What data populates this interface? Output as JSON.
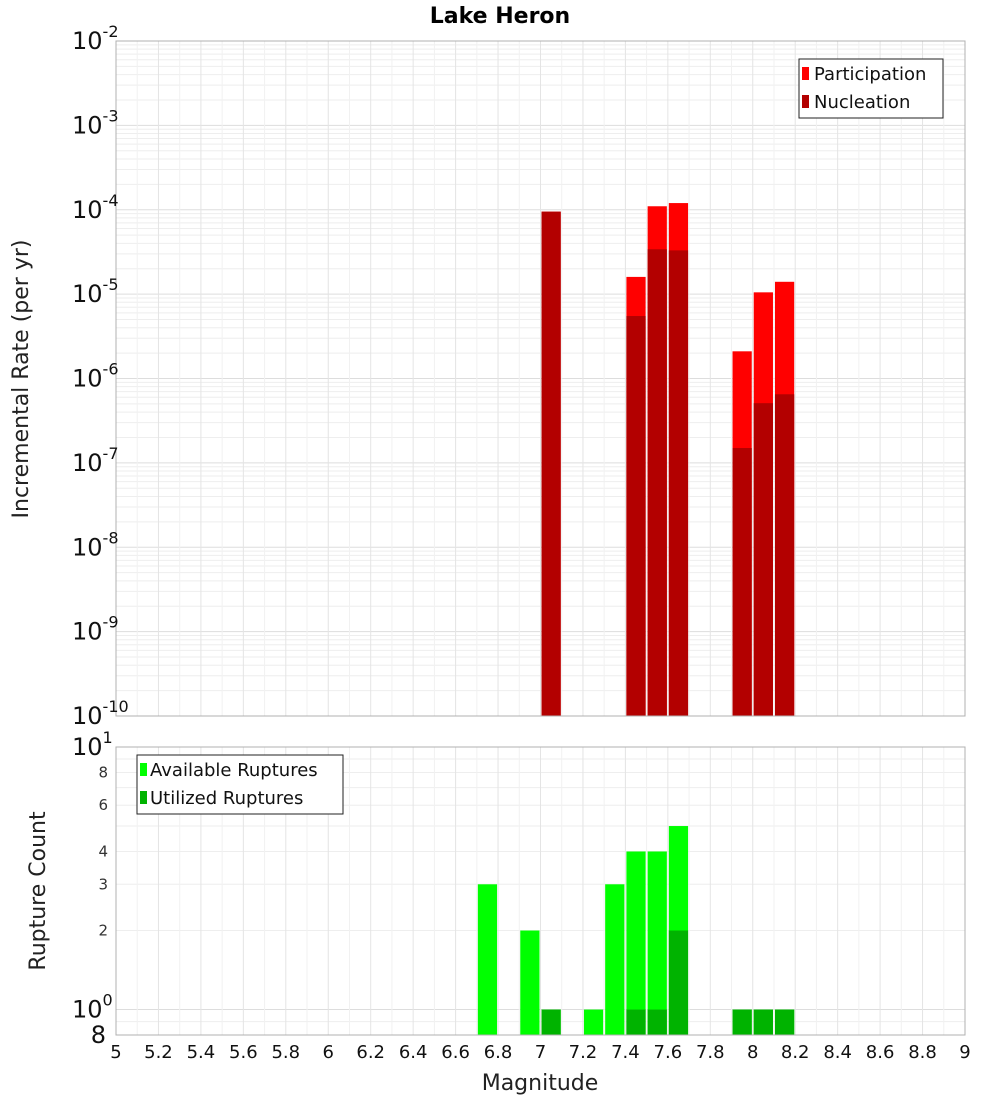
{
  "chart_data": [
    {
      "type": "bar",
      "title": "Lake Heron",
      "xlabel": "",
      "ylabel": "Incremental Rate (per yr)",
      "yscale": "log",
      "ylim": [
        1e-10,
        0.01
      ],
      "xlim": [
        5,
        9
      ],
      "grid": true,
      "legend_position": "top-right",
      "y_tick_labels": [
        {
          "base": "10",
          "exp": "-10"
        },
        {
          "base": "10",
          "exp": "-9"
        },
        {
          "base": "10",
          "exp": "-8"
        },
        {
          "base": "10",
          "exp": "-7"
        },
        {
          "base": "10",
          "exp": "-6"
        },
        {
          "base": "10",
          "exp": "-5"
        },
        {
          "base": "10",
          "exp": "-4"
        },
        {
          "base": "10",
          "exp": "-3"
        },
        {
          "base": "10",
          "exp": "-2"
        }
      ],
      "series": [
        {
          "name": "Participation",
          "color": "#ff0000",
          "x": [
            7.05,
            7.45,
            7.55,
            7.65,
            7.95,
            8.05,
            8.15
          ],
          "values": [
            9.5e-05,
            1.6e-05,
            0.00011,
            0.00012,
            2.1e-06,
            1.05e-05,
            1.4e-05
          ]
        },
        {
          "name": "Nucleation",
          "color": "#b30000",
          "x": [
            7.05,
            7.45,
            7.55,
            7.65,
            7.95,
            8.05,
            8.15
          ],
          "values": [
            9.5e-05,
            5.5e-06,
            3.4e-05,
            3.3e-05,
            1.5e-07,
            5.1e-07,
            6.5e-07
          ]
        }
      ]
    },
    {
      "type": "bar",
      "ylabel": "Rupture Count",
      "xlabel": "Magnitude",
      "yscale": "log",
      "ylim": [
        0.8,
        10
      ],
      "xlim": [
        5,
        9
      ],
      "grid": true,
      "legend_position": "top-left",
      "x_ticks": [
        "5",
        "5.2",
        "5.4",
        "5.6",
        "5.8",
        "6",
        "6.2",
        "6.4",
        "6.6",
        "6.8",
        "7",
        "7.2",
        "7.4",
        "7.6",
        "7.8",
        "8",
        "8.2",
        "8.4",
        "8.6",
        "8.8",
        "9"
      ],
      "y_minor_tick_labels": [
        "2",
        "3",
        "4",
        "6",
        "8"
      ],
      "y_major_tick_labels": [
        {
          "base": "10",
          "exp": "0"
        },
        {
          "base": "10",
          "exp": "1"
        }
      ],
      "y_bottom_tick_label": "8",
      "series": [
        {
          "name": "Available Ruptures",
          "color": "#00ff00",
          "x": [
            6.75,
            6.95,
            7.05,
            7.25,
            7.35,
            7.45,
            7.55,
            7.65,
            7.95,
            8.05,
            8.15
          ],
          "values": [
            3,
            2,
            1,
            1,
            3,
            4,
            4,
            5,
            1,
            1,
            1
          ]
        },
        {
          "name": "Utilized Ruptures",
          "color": "#00b300",
          "x": [
            7.05,
            7.45,
            7.55,
            7.65,
            7.95,
            8.05,
            8.15
          ],
          "values": [
            1,
            1,
            1,
            2,
            1,
            1,
            1
          ]
        }
      ]
    }
  ]
}
